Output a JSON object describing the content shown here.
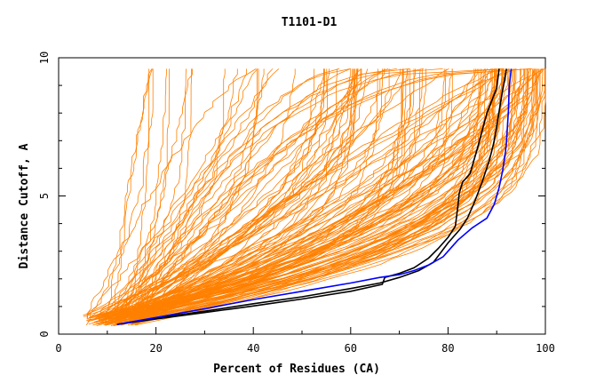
{
  "chart_data": {
    "type": "line",
    "title": "T1101-D1",
    "xlabel": "Percent of Residues (CA)",
    "ylabel": "Distance Cutoff, A",
    "xlim": [
      0,
      100
    ],
    "ylim": [
      0,
      10
    ],
    "x_ticks": [
      0,
      20,
      40,
      60,
      80,
      100
    ],
    "y_ticks": [
      0,
      5,
      10
    ],
    "grid": false,
    "colors": {
      "orange": "#ff8000",
      "black": "#000000",
      "blue": "#0000ff"
    },
    "orange_curves": {
      "count": 150,
      "x_start_range": [
        5,
        16
      ],
      "end_distance": 9.6,
      "end_percent_range": [
        17,
        100
      ],
      "description_hidden": true
    },
    "series": [
      {
        "color": "#000000",
        "x": [
          12,
          20,
          30,
          40,
          50,
          60,
          66.5,
          67,
          70,
          73,
          76,
          78,
          80,
          81.5,
          82,
          82.3,
          83,
          84.5,
          86,
          88,
          90,
          90.5
        ],
        "y": [
          0.35,
          0.55,
          0.78,
          1.02,
          1.27,
          1.55,
          1.8,
          2.05,
          2.2,
          2.4,
          2.75,
          3.1,
          3.5,
          3.9,
          4.6,
          5.1,
          5.5,
          5.8,
          6.7,
          8.0,
          8.9,
          9.6
        ]
      },
      {
        "color": "#000000",
        "x": [
          12,
          20,
          30,
          40,
          50,
          60,
          66,
          70,
          74,
          77,
          80,
          82.5,
          84,
          85.5,
          87,
          88.5,
          89.5,
          91,
          92
        ],
        "y": [
          0.35,
          0.58,
          0.83,
          1.1,
          1.35,
          1.65,
          1.85,
          2.05,
          2.3,
          2.6,
          3.3,
          3.8,
          4.2,
          4.8,
          5.5,
          6.3,
          7.0,
          8.6,
          9.6
        ]
      },
      {
        "color": "#0000ff",
        "x": [
          12,
          20,
          30,
          40,
          50,
          60,
          66,
          70,
          73,
          76,
          79,
          82,
          85,
          88,
          89.5,
          90.5,
          91.2,
          91.8,
          92.1,
          92.4,
          92.6,
          93
        ],
        "y": [
          0.35,
          0.6,
          0.92,
          1.25,
          1.55,
          1.85,
          2.05,
          2.15,
          2.3,
          2.5,
          2.8,
          3.4,
          3.85,
          4.2,
          4.7,
          5.3,
          5.9,
          6.6,
          7.2,
          8.1,
          9.0,
          9.6
        ]
      }
    ]
  }
}
